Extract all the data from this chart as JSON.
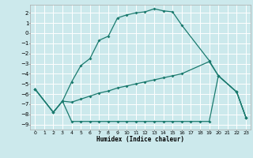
{
  "xlabel": "Humidex (Indice chaleur)",
  "bg_color": "#cce9ec",
  "grid_color": "#ffffff",
  "line_color": "#1a7a6e",
  "xlim": [
    -0.5,
    23.5
  ],
  "ylim": [
    -9.5,
    2.8
  ],
  "xticks": [
    0,
    1,
    2,
    3,
    4,
    5,
    6,
    7,
    8,
    9,
    10,
    11,
    12,
    13,
    14,
    15,
    16,
    17,
    18,
    19,
    20,
    21,
    22,
    23
  ],
  "yticks": [
    -9,
    -8,
    -7,
    -6,
    -5,
    -4,
    -3,
    -2,
    -1,
    0,
    1,
    2
  ],
  "s1x": [
    0,
    2,
    3,
    4,
    5,
    6,
    7,
    8,
    9,
    10,
    11,
    12,
    13,
    14,
    15,
    16,
    19,
    20,
    22,
    23
  ],
  "s1y": [
    -5.5,
    -7.8,
    -6.7,
    -4.8,
    -3.2,
    -2.5,
    -0.7,
    -0.3,
    1.5,
    1.8,
    2.0,
    2.1,
    2.4,
    2.2,
    2.1,
    0.8,
    -2.7,
    -4.2,
    -5.8,
    -8.3
  ],
  "s2x": [
    0,
    2,
    3,
    4,
    5,
    6,
    7,
    8,
    9,
    10,
    11,
    12,
    13,
    14,
    15,
    16,
    19,
    20,
    22,
    23
  ],
  "s2y": [
    -5.5,
    -7.8,
    -6.7,
    -6.8,
    -6.5,
    -6.2,
    -5.9,
    -5.7,
    -5.4,
    -5.2,
    -5.0,
    -4.8,
    -4.6,
    -4.4,
    -4.2,
    -4.0,
    -2.8,
    -4.2,
    -5.8,
    -8.3
  ],
  "s3x": [
    0,
    2,
    3,
    4,
    5,
    6,
    7,
    8,
    9,
    10,
    11,
    12,
    13,
    14,
    15,
    16,
    17,
    18,
    19,
    20,
    22,
    23
  ],
  "s3y": [
    -5.5,
    -7.8,
    -6.7,
    -8.7,
    -8.7,
    -8.7,
    -8.7,
    -8.7,
    -8.7,
    -8.7,
    -8.7,
    -8.7,
    -8.7,
    -8.7,
    -8.7,
    -8.7,
    -8.7,
    -8.7,
    -8.7,
    -4.2,
    -5.8,
    -8.3
  ]
}
